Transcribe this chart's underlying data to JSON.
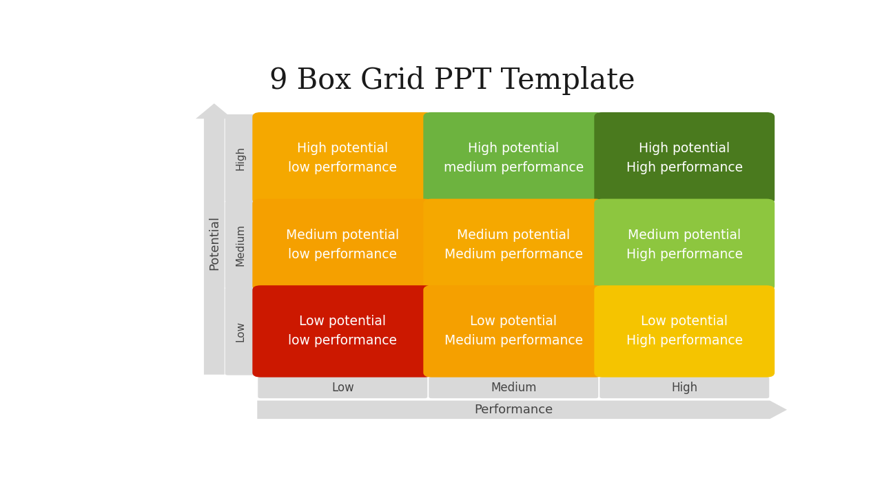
{
  "title": "9 Box Grid PPT Template",
  "title_fontsize": 30,
  "title_font": "serif",
  "background_color": "#ffffff",
  "grid": {
    "rows": [
      "High",
      "Medium",
      "Low"
    ],
    "cols": [
      "Low",
      "Medium",
      "High"
    ],
    "row_label": "Potential",
    "col_label": "Performance"
  },
  "boxes": [
    {
      "row": 0,
      "col": 0,
      "color": "#F5A800",
      "text": "High potential\nlow performance"
    },
    {
      "row": 0,
      "col": 1,
      "color": "#6DB33F",
      "text": "High potential\nmedium performance"
    },
    {
      "row": 0,
      "col": 2,
      "color": "#4A7A1E",
      "text": "High potential\nHigh performance"
    },
    {
      "row": 1,
      "col": 0,
      "color": "#F5A000",
      "text": "Medium potential\nlow performance"
    },
    {
      "row": 1,
      "col": 1,
      "color": "#F5A800",
      "text": "Medium potential\nMedium performance"
    },
    {
      "row": 1,
      "col": 2,
      "color": "#8DC63F",
      "text": "Medium potential\nHigh performance"
    },
    {
      "row": 2,
      "col": 0,
      "color": "#CC1800",
      "text": "Low potential\nlow performance"
    },
    {
      "row": 2,
      "col": 1,
      "color": "#F5A000",
      "text": "Low potential\nMedium performance"
    },
    {
      "row": 2,
      "col": 2,
      "color": "#F5C400",
      "text": "Low potential\nHigh performance"
    }
  ],
  "text_color": "#ffffff",
  "text_fontsize": 13.5,
  "row_label_fontsize": 11,
  "col_label_fontsize": 12,
  "axis_label_fontsize": 13,
  "potential_label_fontsize": 13,
  "gray_bar_color": "#D9D9D9",
  "gray_label_color": "#444444"
}
